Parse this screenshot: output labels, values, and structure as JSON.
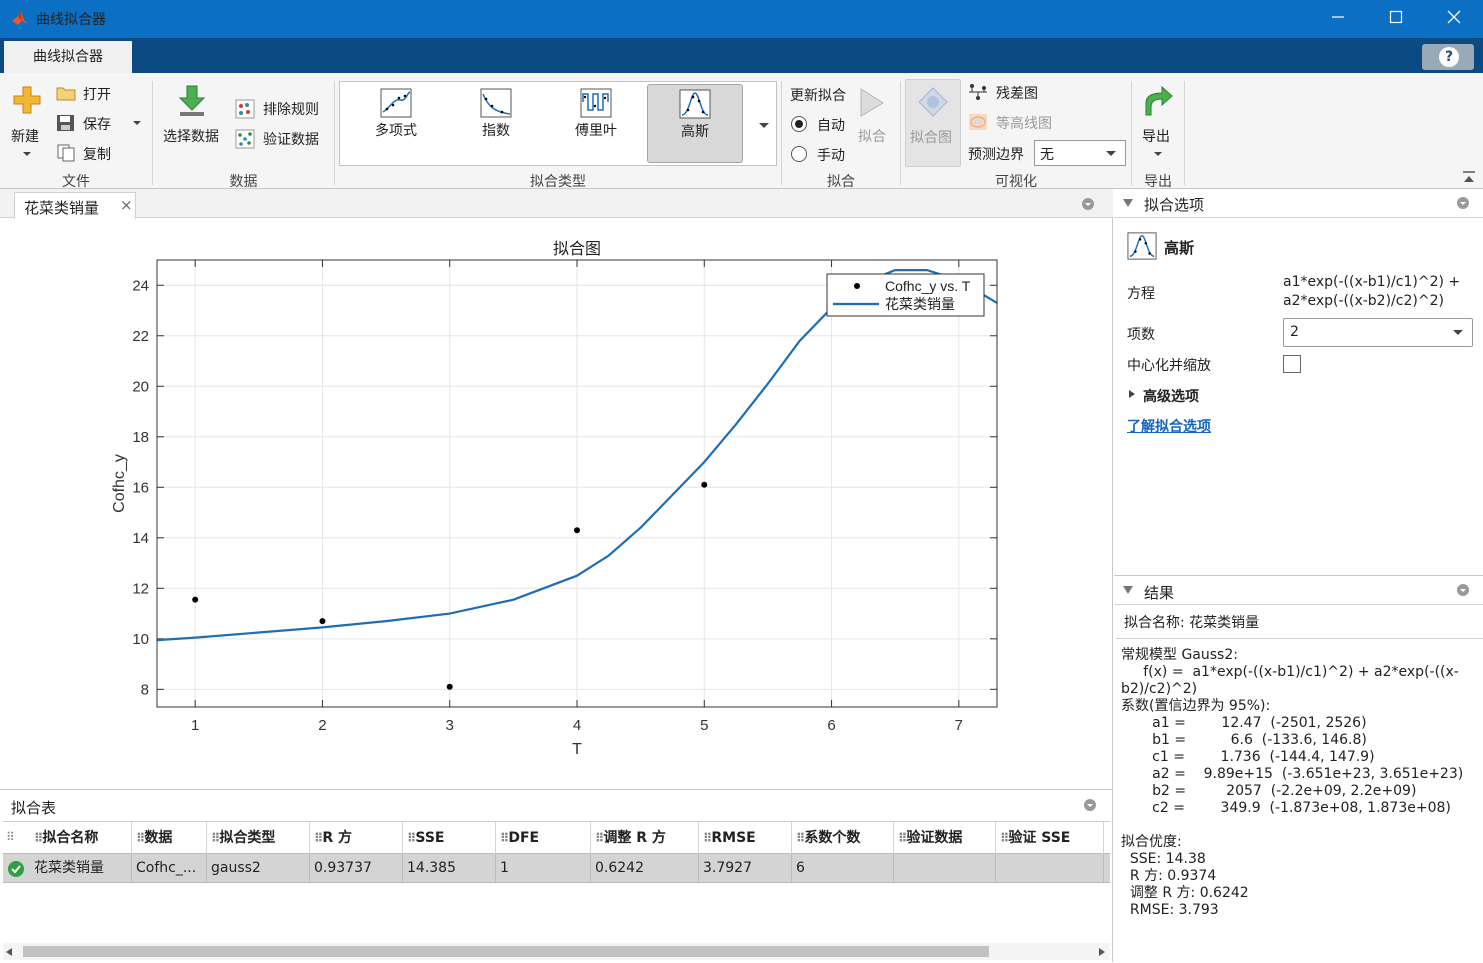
{
  "window": {
    "title": "曲线拟合器",
    "min_icon": "minimize-icon",
    "max_icon": "maximize-icon",
    "close_icon": "close-icon"
  },
  "tab": {
    "label": "曲线拟合器",
    "help": "?"
  },
  "toolstrip": {
    "file": {
      "new": "新建",
      "open": "打开",
      "save": "保存",
      "copy": "复制",
      "section": "文件"
    },
    "data": {
      "select": "选择数据",
      "exclude": "排除规则",
      "validate": "验证数据",
      "section": "数据"
    },
    "fit_type": {
      "items": [
        "多项式",
        "指数",
        "傅里叶",
        "高斯"
      ],
      "selected": "高斯",
      "section": "拟合类型"
    },
    "fit": {
      "update_label": "更新拟合",
      "auto": "自动",
      "manual": "手动",
      "fit_btn": "拟合",
      "section": "拟合"
    },
    "visual": {
      "fit_plot": "拟合图",
      "residual": "残差图",
      "contour": "等高线图",
      "pred_bound_label": "预测边界",
      "pred_bound_value": "无",
      "section": "可视化"
    },
    "export": {
      "label": "导出",
      "section": "导出"
    }
  },
  "doc_tab": {
    "label": "花菜类销量",
    "close": "×"
  },
  "chart_data": {
    "type": "scatter",
    "title": "拟合图",
    "xlabel": "T",
    "ylabel": "Cofhc_y",
    "xlim": [
      0.7,
      7.3
    ],
    "ylim": [
      7.3,
      25
    ],
    "xticks": [
      1,
      2,
      3,
      4,
      5,
      6,
      7
    ],
    "yticks": [
      8,
      10,
      12,
      14,
      16,
      18,
      20,
      22,
      24
    ],
    "grid": true,
    "legend_position": "top-right",
    "series": [
      {
        "name": "Cofhc_y vs. T",
        "kind": "points",
        "color": "#000000",
        "x": [
          1,
          2,
          3,
          4,
          5
        ],
        "y": [
          11.55,
          10.7,
          8.1,
          14.3,
          16.1
        ]
      },
      {
        "name": "花菜类销量",
        "kind": "curve",
        "color": "#1f6db5",
        "x": [
          0.7,
          1,
          1.5,
          2,
          2.5,
          3,
          3.5,
          4,
          4.25,
          4.5,
          4.75,
          5,
          5.25,
          5.5,
          5.75,
          6,
          6.25,
          6.5,
          6.75,
          7,
          7.3
        ],
        "y": [
          9.95,
          10.05,
          10.25,
          10.45,
          10.7,
          11.0,
          11.55,
          12.5,
          13.3,
          14.4,
          15.7,
          17.0,
          18.5,
          20.1,
          21.8,
          23.1,
          24.1,
          24.6,
          24.6,
          24.2,
          23.3
        ]
      }
    ]
  },
  "fit_options": {
    "header": "拟合选项",
    "model": "高斯",
    "eq_label": "方程",
    "eq_line1": "a1*exp(-((x-b1)/c1)^2) +",
    "eq_line2": "a2*exp(-((x-b2)/c2)^2)",
    "terms_label": "项数",
    "terms_value": "2",
    "center_label": "中心化并缩放",
    "advanced": "高级选项",
    "learn_link": "了解拟合选项"
  },
  "results": {
    "header": "结果",
    "fit_name": "拟合名称: 花菜类销量",
    "lines": [
      "常规模型 Gauss2:",
      "     f(x) =  a1*exp(-((x-b1)/c1)^2) + a2*exp(-((x-",
      "b2)/c2)^2)",
      "系数(置信边界为 95%):",
      "       a1 =        12.47  (-2501, 2526)",
      "       b1 =          6.6  (-133.6, 146.8)",
      "       c1 =        1.736  (-144.4, 147.9)",
      "       a2 =    9.89e+15  (-3.651e+23, 3.651e+23)",
      "       b2 =         2057  (-2.2e+09, 2.2e+09)",
      "       c2 =        349.9  (-1.873e+08, 1.873e+08)",
      "",
      "拟合优度:",
      "  SSE: 14.38",
      "  R 方: 0.9374",
      "  调整 R 方: 0.6242",
      "  RMSE: 3.793"
    ]
  },
  "fit_table": {
    "header": "拟合表",
    "columns": [
      "拟合名称",
      "数据",
      "拟合类型",
      "R 方",
      "SSE",
      "DFE",
      "调整 R 方",
      "RMSE",
      "系数个数",
      "验证数据",
      "验证 SSE"
    ],
    "rows": [
      [
        "花菜类销量",
        "Cofhc_...",
        "gauss2",
        "0.93737",
        "14.385",
        "1",
        "0.6242",
        "3.7927",
        "6",
        "",
        ""
      ]
    ]
  }
}
